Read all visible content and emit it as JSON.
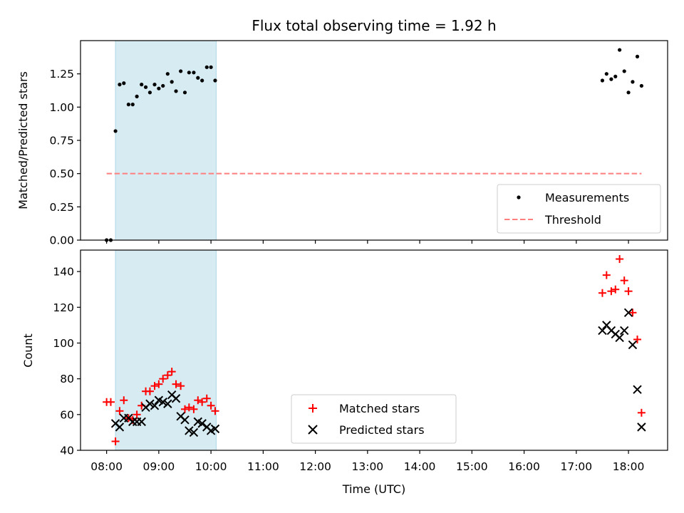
{
  "chart_data": [
    {
      "type": "scatter",
      "title": "Flux total observing time = 1.92 h",
      "ylabel": "Matched/Predicted stars",
      "xlabel": "",
      "ylim": [
        0,
        1.5
      ],
      "yticks": [
        "0.00",
        "0.25",
        "0.50",
        "0.75",
        "1.00",
        "1.25"
      ],
      "legend_position": "lower right",
      "shaded_interval_hours": [
        8.17,
        10.1
      ],
      "shade_color": "#add8e6",
      "series": [
        {
          "name": "Measurements",
          "marker": "dot",
          "color": "#000000",
          "x": [
            8.0,
            8.08,
            8.17,
            8.25,
            8.33,
            8.42,
            8.5,
            8.58,
            8.67,
            8.75,
            8.83,
            8.92,
            9.0,
            9.08,
            9.17,
            9.25,
            9.33,
            9.42,
            9.5,
            9.58,
            9.67,
            9.75,
            9.83,
            9.92,
            10.0,
            10.08,
            17.5,
            17.58,
            17.67,
            17.75,
            17.83,
            17.92,
            18.0,
            18.08,
            18.17,
            18.25
          ],
          "y": [
            0.0,
            0.0,
            0.82,
            1.17,
            1.18,
            1.02,
            1.02,
            1.08,
            1.17,
            1.15,
            1.11,
            1.17,
            1.14,
            1.16,
            1.25,
            1.19,
            1.12,
            1.27,
            1.11,
            1.26,
            1.26,
            1.22,
            1.2,
            1.3,
            1.3,
            1.2,
            1.2,
            1.25,
            1.21,
            1.23,
            1.43,
            1.27,
            1.11,
            1.19,
            1.38,
            1.16
          ]
        },
        {
          "name": "Threshold",
          "marker": "dashed-line",
          "color": "#ff7f7f",
          "x": [
            8.0,
            18.25
          ],
          "y": [
            0.5,
            0.5
          ]
        }
      ]
    },
    {
      "type": "scatter",
      "title": "",
      "ylabel": "Count",
      "xlabel": "Time (UTC)",
      "ylim": [
        40,
        152
      ],
      "yticks": [
        "40",
        "60",
        "80",
        "100",
        "120",
        "140"
      ],
      "xlim_hours": [
        7.5,
        18.75
      ],
      "xticks": [
        "08:00",
        "09:00",
        "10:00",
        "11:00",
        "12:00",
        "13:00",
        "14:00",
        "15:00",
        "16:00",
        "17:00",
        "18:00"
      ],
      "legend_position": "lower center",
      "shaded_interval_hours": [
        8.17,
        10.1
      ],
      "shade_color": "#add8e6",
      "series": [
        {
          "name": "Matched stars",
          "marker": "plus",
          "color": "#ff0000",
          "x": [
            8.0,
            8.08,
            8.17,
            8.25,
            8.33,
            8.42,
            8.5,
            8.58,
            8.67,
            8.75,
            8.83,
            8.92,
            9.0,
            9.08,
            9.17,
            9.25,
            9.33,
            9.42,
            9.5,
            9.58,
            9.67,
            9.75,
            9.83,
            9.92,
            10.0,
            10.08,
            17.5,
            17.58,
            17.67,
            17.75,
            17.83,
            17.92,
            18.0,
            18.08,
            18.17,
            18.25
          ],
          "y": [
            67,
            67,
            45,
            62,
            68,
            58,
            57,
            60,
            65,
            73,
            73,
            76,
            77,
            80,
            82,
            84,
            77,
            76,
            63,
            64,
            63,
            68,
            67,
            69,
            65,
            62,
            128,
            138,
            129,
            130,
            147,
            135,
            129,
            117,
            102,
            61
          ]
        },
        {
          "name": "Predicted stars",
          "marker": "x",
          "color": "#000000",
          "x": [
            8.17,
            8.25,
            8.33,
            8.42,
            8.5,
            8.58,
            8.67,
            8.75,
            8.83,
            8.92,
            9.0,
            9.08,
            9.17,
            9.25,
            9.33,
            9.42,
            9.5,
            9.58,
            9.67,
            9.75,
            9.83,
            9.92,
            10.0,
            10.08,
            17.5,
            17.58,
            17.67,
            17.75,
            17.83,
            17.92,
            18.0,
            18.08,
            18.17,
            18.25
          ],
          "y": [
            55,
            53,
            58,
            58,
            56,
            56,
            56,
            64,
            66,
            65,
            68,
            67,
            66,
            71,
            69,
            59,
            57,
            51,
            50,
            56,
            55,
            53,
            51,
            52,
            107,
            110,
            107,
            105,
            103,
            107,
            117,
            99,
            74,
            53
          ]
        }
      ]
    }
  ]
}
